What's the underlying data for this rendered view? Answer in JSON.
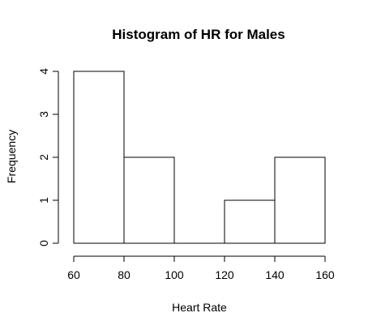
{
  "chart_data": {
    "type": "bar",
    "title": "Histogram of HR for Males",
    "xlabel": "Heart Rate",
    "ylabel": "Frequency",
    "bins": [
      {
        "from": 60,
        "to": 80,
        "count": 4
      },
      {
        "from": 80,
        "to": 100,
        "count": 2
      },
      {
        "from": 100,
        "to": 120,
        "count": 0
      },
      {
        "from": 120,
        "to": 140,
        "count": 1
      },
      {
        "from": 140,
        "to": 160,
        "count": 2
      }
    ],
    "xlim": [
      60,
      160
    ],
    "ylim": [
      0,
      4
    ],
    "x_ticks": [
      60,
      80,
      100,
      120,
      140,
      160
    ],
    "y_ticks": [
      0,
      1,
      2,
      3,
      4
    ],
    "x_tick_labels": [
      "60",
      "80",
      "100",
      "120",
      "140",
      "160"
    ],
    "y_tick_labels": [
      "0",
      "1",
      "2",
      "3",
      "4"
    ],
    "grid": false,
    "colors": {
      "bar_fill": "#ffffff",
      "bar_stroke": "#000000",
      "axis": "#000000",
      "background": "#ffffff"
    }
  }
}
